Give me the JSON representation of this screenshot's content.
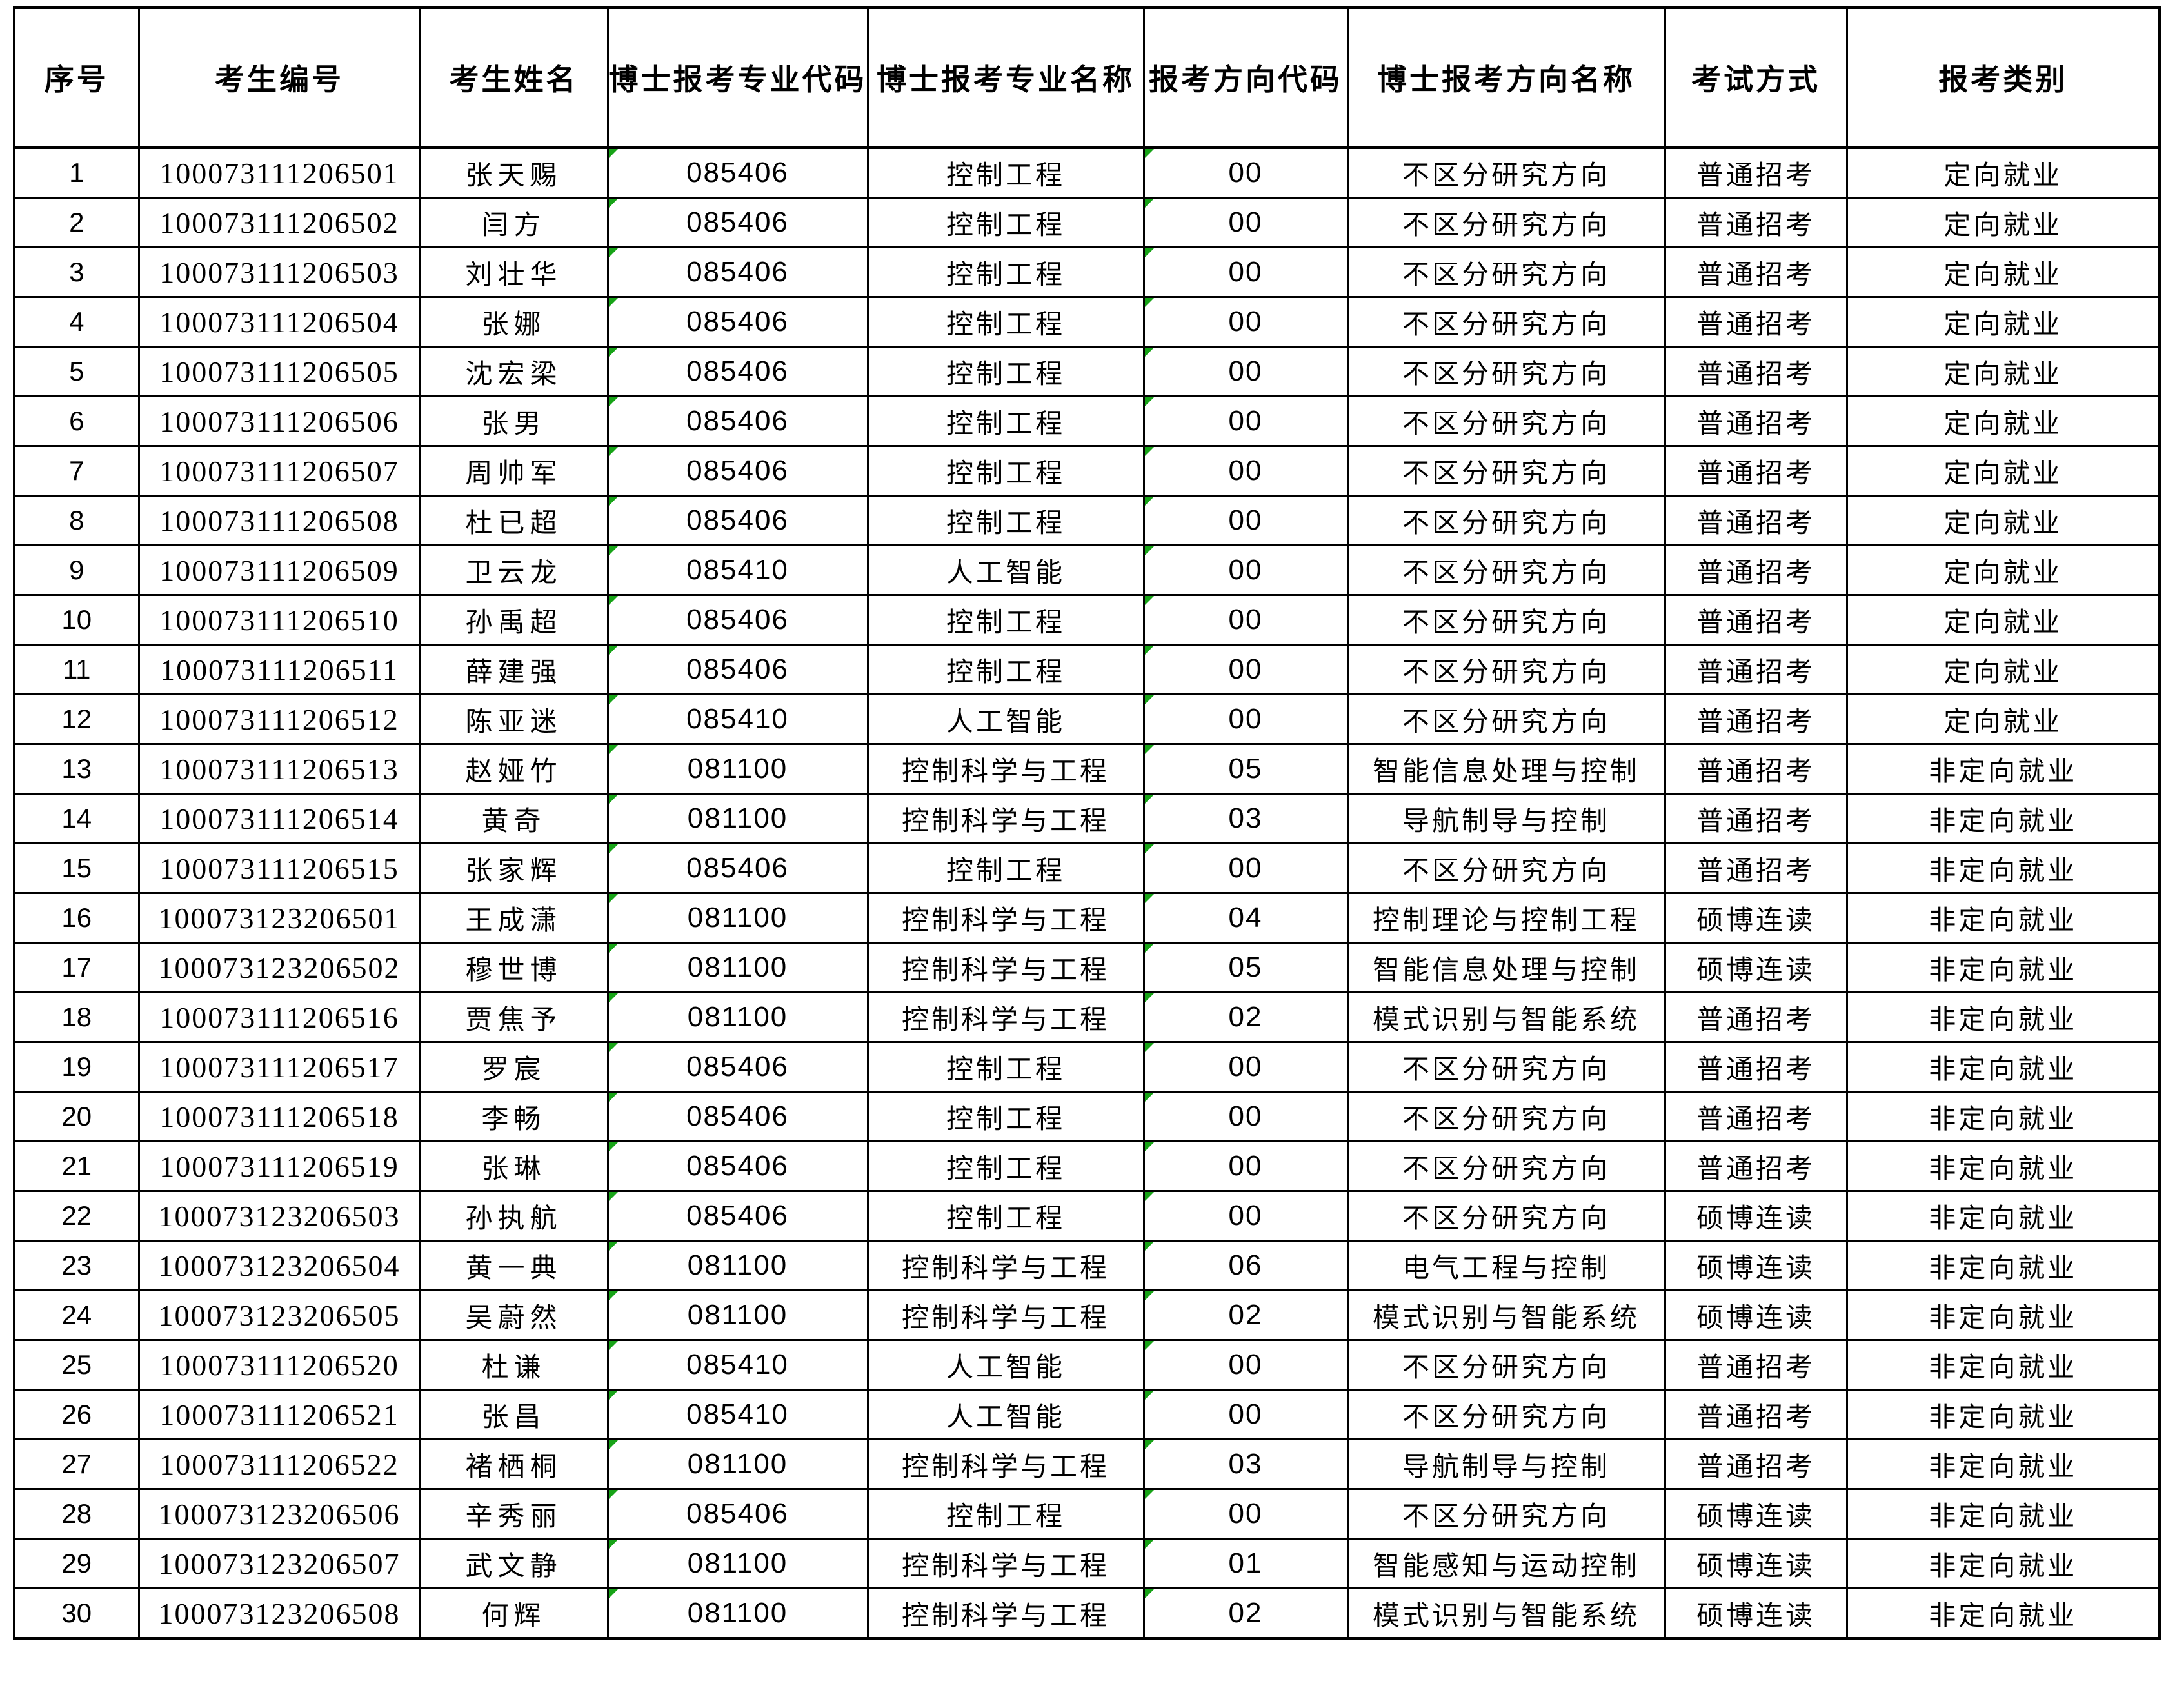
{
  "table": {
    "headers": [
      "序号",
      "考生编号",
      "考生姓名",
      "博士报考专业代码",
      "博士报考专业名称",
      "报考方向代码",
      "博士报考方向名称",
      "考试方式",
      "报考类别"
    ],
    "column_keys": [
      "seq",
      "candidate_id",
      "name",
      "major_code",
      "major_name",
      "direction_code",
      "direction_name",
      "exam_method",
      "category"
    ],
    "flag_columns": [
      "major_code",
      "direction_code"
    ],
    "flag_color": "#17a317",
    "border_color": "#000000",
    "background_color": "#ffffff",
    "rows": [
      {
        "seq": "1",
        "candidate_id": "100073111206501",
        "name": "张天赐",
        "major_code": "085406",
        "major_name": "控制工程",
        "direction_code": "00",
        "direction_name": "不区分研究方向",
        "exam_method": "普通招考",
        "category": "定向就业"
      },
      {
        "seq": "2",
        "candidate_id": "100073111206502",
        "name": "闫方",
        "major_code": "085406",
        "major_name": "控制工程",
        "direction_code": "00",
        "direction_name": "不区分研究方向",
        "exam_method": "普通招考",
        "category": "定向就业"
      },
      {
        "seq": "3",
        "candidate_id": "100073111206503",
        "name": "刘壮华",
        "major_code": "085406",
        "major_name": "控制工程",
        "direction_code": "00",
        "direction_name": "不区分研究方向",
        "exam_method": "普通招考",
        "category": "定向就业"
      },
      {
        "seq": "4",
        "candidate_id": "100073111206504",
        "name": "张娜",
        "major_code": "085406",
        "major_name": "控制工程",
        "direction_code": "00",
        "direction_name": "不区分研究方向",
        "exam_method": "普通招考",
        "category": "定向就业"
      },
      {
        "seq": "5",
        "candidate_id": "100073111206505",
        "name": "沈宏梁",
        "major_code": "085406",
        "major_name": "控制工程",
        "direction_code": "00",
        "direction_name": "不区分研究方向",
        "exam_method": "普通招考",
        "category": "定向就业"
      },
      {
        "seq": "6",
        "candidate_id": "100073111206506",
        "name": "张男",
        "major_code": "085406",
        "major_name": "控制工程",
        "direction_code": "00",
        "direction_name": "不区分研究方向",
        "exam_method": "普通招考",
        "category": "定向就业"
      },
      {
        "seq": "7",
        "candidate_id": "100073111206507",
        "name": "周帅军",
        "major_code": "085406",
        "major_name": "控制工程",
        "direction_code": "00",
        "direction_name": "不区分研究方向",
        "exam_method": "普通招考",
        "category": "定向就业"
      },
      {
        "seq": "8",
        "candidate_id": "100073111206508",
        "name": "杜已超",
        "major_code": "085406",
        "major_name": "控制工程",
        "direction_code": "00",
        "direction_name": "不区分研究方向",
        "exam_method": "普通招考",
        "category": "定向就业"
      },
      {
        "seq": "9",
        "candidate_id": "100073111206509",
        "name": "卫云龙",
        "major_code": "085410",
        "major_name": "人工智能",
        "direction_code": "00",
        "direction_name": "不区分研究方向",
        "exam_method": "普通招考",
        "category": "定向就业"
      },
      {
        "seq": "10",
        "candidate_id": "100073111206510",
        "name": "孙禹超",
        "major_code": "085406",
        "major_name": "控制工程",
        "direction_code": "00",
        "direction_name": "不区分研究方向",
        "exam_method": "普通招考",
        "category": "定向就业"
      },
      {
        "seq": "11",
        "candidate_id": "100073111206511",
        "name": "薛建强",
        "major_code": "085406",
        "major_name": "控制工程",
        "direction_code": "00",
        "direction_name": "不区分研究方向",
        "exam_method": "普通招考",
        "category": "定向就业"
      },
      {
        "seq": "12",
        "candidate_id": "100073111206512",
        "name": "陈亚迷",
        "major_code": "085410",
        "major_name": "人工智能",
        "direction_code": "00",
        "direction_name": "不区分研究方向",
        "exam_method": "普通招考",
        "category": "定向就业"
      },
      {
        "seq": "13",
        "candidate_id": "100073111206513",
        "name": "赵娅竹",
        "major_code": "081100",
        "major_name": "控制科学与工程",
        "direction_code": "05",
        "direction_name": "智能信息处理与控制",
        "exam_method": "普通招考",
        "category": "非定向就业"
      },
      {
        "seq": "14",
        "candidate_id": "100073111206514",
        "name": "黄奇",
        "major_code": "081100",
        "major_name": "控制科学与工程",
        "direction_code": "03",
        "direction_name": "导航制导与控制",
        "exam_method": "普通招考",
        "category": "非定向就业"
      },
      {
        "seq": "15",
        "candidate_id": "100073111206515",
        "name": "张家辉",
        "major_code": "085406",
        "major_name": "控制工程",
        "direction_code": "00",
        "direction_name": "不区分研究方向",
        "exam_method": "普通招考",
        "category": "非定向就业"
      },
      {
        "seq": "16",
        "candidate_id": "100073123206501",
        "name": "王成潇",
        "major_code": "081100",
        "major_name": "控制科学与工程",
        "direction_code": "04",
        "direction_name": "控制理论与控制工程",
        "exam_method": "硕博连读",
        "category": "非定向就业"
      },
      {
        "seq": "17",
        "candidate_id": "100073123206502",
        "name": "穆世博",
        "major_code": "081100",
        "major_name": "控制科学与工程",
        "direction_code": "05",
        "direction_name": "智能信息处理与控制",
        "exam_method": "硕博连读",
        "category": "非定向就业"
      },
      {
        "seq": "18",
        "candidate_id": "100073111206516",
        "name": "贾焦予",
        "major_code": "081100",
        "major_name": "控制科学与工程",
        "direction_code": "02",
        "direction_name": "模式识别与智能系统",
        "exam_method": "普通招考",
        "category": "非定向就业"
      },
      {
        "seq": "19",
        "candidate_id": "100073111206517",
        "name": "罗宸",
        "major_code": "085406",
        "major_name": "控制工程",
        "direction_code": "00",
        "direction_name": "不区分研究方向",
        "exam_method": "普通招考",
        "category": "非定向就业"
      },
      {
        "seq": "20",
        "candidate_id": "100073111206518",
        "name": "李畅",
        "major_code": "085406",
        "major_name": "控制工程",
        "direction_code": "00",
        "direction_name": "不区分研究方向",
        "exam_method": "普通招考",
        "category": "非定向就业"
      },
      {
        "seq": "21",
        "candidate_id": "100073111206519",
        "name": "张琳",
        "major_code": "085406",
        "major_name": "控制工程",
        "direction_code": "00",
        "direction_name": "不区分研究方向",
        "exam_method": "普通招考",
        "category": "非定向就业"
      },
      {
        "seq": "22",
        "candidate_id": "100073123206503",
        "name": "孙执航",
        "major_code": "085406",
        "major_name": "控制工程",
        "direction_code": "00",
        "direction_name": "不区分研究方向",
        "exam_method": "硕博连读",
        "category": "非定向就业"
      },
      {
        "seq": "23",
        "candidate_id": "100073123206504",
        "name": "黄一典",
        "major_code": "081100",
        "major_name": "控制科学与工程",
        "direction_code": "06",
        "direction_name": "电气工程与控制",
        "exam_method": "硕博连读",
        "category": "非定向就业"
      },
      {
        "seq": "24",
        "candidate_id": "100073123206505",
        "name": "吴蔚然",
        "major_code": "081100",
        "major_name": "控制科学与工程",
        "direction_code": "02",
        "direction_name": "模式识别与智能系统",
        "exam_method": "硕博连读",
        "category": "非定向就业"
      },
      {
        "seq": "25",
        "candidate_id": "100073111206520",
        "name": "杜谦",
        "major_code": "085410",
        "major_name": "人工智能",
        "direction_code": "00",
        "direction_name": "不区分研究方向",
        "exam_method": "普通招考",
        "category": "非定向就业"
      },
      {
        "seq": "26",
        "candidate_id": "100073111206521",
        "name": "张昌",
        "major_code": "085410",
        "major_name": "人工智能",
        "direction_code": "00",
        "direction_name": "不区分研究方向",
        "exam_method": "普通招考",
        "category": "非定向就业"
      },
      {
        "seq": "27",
        "candidate_id": "100073111206522",
        "name": "褚栖桐",
        "major_code": "081100",
        "major_name": "控制科学与工程",
        "direction_code": "03",
        "direction_name": "导航制导与控制",
        "exam_method": "普通招考",
        "category": "非定向就业"
      },
      {
        "seq": "28",
        "candidate_id": "100073123206506",
        "name": "辛秀丽",
        "major_code": "085406",
        "major_name": "控制工程",
        "direction_code": "00",
        "direction_name": "不区分研究方向",
        "exam_method": "硕博连读",
        "category": "非定向就业"
      },
      {
        "seq": "29",
        "candidate_id": "100073123206507",
        "name": "武文静",
        "major_code": "081100",
        "major_name": "控制科学与工程",
        "direction_code": "01",
        "direction_name": "智能感知与运动控制",
        "exam_method": "硕博连读",
        "category": "非定向就业"
      },
      {
        "seq": "30",
        "candidate_id": "100073123206508",
        "name": "何辉",
        "major_code": "081100",
        "major_name": "控制科学与工程",
        "direction_code": "02",
        "direction_name": "模式识别与智能系统",
        "exam_method": "硕博连读",
        "category": "非定向就业"
      }
    ]
  }
}
